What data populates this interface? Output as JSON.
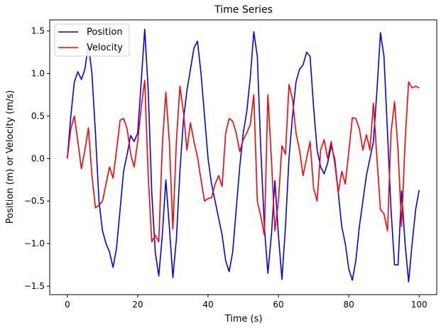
{
  "chart_data": {
    "type": "line",
    "title": "Time Series",
    "xlabel": "Time (s)",
    "ylabel": "Position (m) or Velocity (m/s)",
    "xlim": [
      -5,
      105
    ],
    "ylim": [
      -1.6,
      1.63
    ],
    "xticks": [
      0,
      20,
      40,
      60,
      80,
      100
    ],
    "yticks": [
      -1.5,
      -1.0,
      -0.5,
      0.0,
      0.5,
      1.0,
      1.5
    ],
    "ytick_labels": [
      "−1.5",
      "−1.0",
      "−0.5",
      "0.0",
      "0.5",
      "1.0",
      "1.5"
    ],
    "legend": "upper-left",
    "grid": false,
    "series": [
      {
        "name": "Position",
        "color": "#0000ff",
        "x": [
          0,
          1,
          2,
          3,
          4,
          5,
          6,
          7,
          8,
          9,
          10,
          11,
          12,
          13,
          14,
          15,
          16,
          17,
          18,
          19,
          20,
          21,
          22,
          23,
          24,
          25,
          26,
          27,
          28,
          29,
          30,
          31,
          32,
          33,
          34,
          35,
          36,
          37,
          38,
          39,
          40,
          41,
          42,
          43,
          44,
          45,
          46,
          47,
          48,
          49,
          50,
          51,
          52,
          53,
          54,
          55,
          56,
          57,
          58,
          59,
          60,
          61,
          62,
          63,
          64,
          65,
          66,
          67,
          68,
          69,
          70,
          71,
          72,
          73,
          74,
          75,
          76,
          77,
          78,
          79,
          80,
          81,
          82,
          83,
          84,
          85,
          86,
          87,
          88,
          89,
          90,
          91,
          92,
          93,
          94,
          95,
          96,
          97,
          98,
          99,
          100
        ],
        "y": [
          0.0,
          0.5,
          0.9,
          1.02,
          0.93,
          1.05,
          1.35,
          1.0,
          0.3,
          -0.5,
          -0.85,
          -1.0,
          -1.1,
          -1.28,
          -1.05,
          -0.6,
          -0.15,
          0.05,
          0.27,
          0.2,
          0.3,
          0.9,
          1.52,
          0.8,
          -0.4,
          -1.1,
          -1.38,
          -0.9,
          -0.25,
          -0.8,
          -1.4,
          -0.95,
          -0.15,
          0.45,
          0.8,
          1.05,
          1.3,
          1.38,
          1.0,
          0.5,
          0.0,
          -0.3,
          -0.5,
          -0.7,
          -0.9,
          -1.2,
          -1.33,
          -1.1,
          -0.6,
          -0.1,
          0.3,
          0.55,
          0.95,
          1.49,
          1.2,
          0.1,
          -0.8,
          -1.35,
          -0.9,
          -0.26,
          -0.9,
          -1.42,
          -0.8,
          0.0,
          0.5,
          0.9,
          1.05,
          1.1,
          1.25,
          1.2,
          0.6,
          0.1,
          -0.1,
          -0.18,
          -0.05,
          0.15,
          0.0,
          -0.4,
          -0.8,
          -1.0,
          -1.3,
          -1.43,
          -1.2,
          -0.8,
          -0.5,
          -0.2,
          0.0,
          0.2,
          0.8,
          1.48,
          1.2,
          0.3,
          -0.6,
          -1.25,
          -1.25,
          -0.38,
          -1.0,
          -1.45,
          -1.0,
          -0.6,
          -0.37
        ]
      },
      {
        "name": "Velocity",
        "color": "#ff0000",
        "x": [
          0,
          1,
          2,
          3,
          4,
          5,
          6,
          7,
          8,
          9,
          10,
          11,
          12,
          13,
          14,
          15,
          16,
          17,
          18,
          19,
          20,
          21,
          22,
          23,
          24,
          25,
          26,
          27,
          28,
          29,
          30,
          31,
          32,
          33,
          34,
          35,
          36,
          37,
          38,
          39,
          40,
          41,
          42,
          43,
          44,
          45,
          46,
          47,
          48,
          49,
          50,
          51,
          52,
          53,
          54,
          55,
          56,
          57,
          58,
          59,
          60,
          61,
          62,
          63,
          64,
          65,
          66,
          67,
          68,
          69,
          70,
          71,
          72,
          73,
          74,
          75,
          76,
          77,
          78,
          79,
          80,
          81,
          82,
          83,
          84,
          85,
          86,
          87,
          88,
          89,
          90,
          91,
          92,
          93,
          94,
          95,
          96,
          97,
          98,
          99,
          100
        ],
        "y": [
          0.0,
          0.35,
          0.5,
          0.2,
          -0.12,
          0.1,
          0.36,
          -0.2,
          -0.58,
          -0.55,
          -0.5,
          -0.3,
          -0.1,
          -0.23,
          0.1,
          0.45,
          0.47,
          0.35,
          0.05,
          -0.1,
          0.2,
          0.6,
          0.92,
          -0.2,
          -0.98,
          -0.9,
          -0.98,
          0.15,
          0.78,
          0.2,
          -0.83,
          0.2,
          0.85,
          0.55,
          0.1,
          0.42,
          0.2,
          0.02,
          -0.25,
          -0.5,
          -0.47,
          -0.46,
          -0.3,
          -0.2,
          -0.33,
          0.3,
          0.47,
          0.44,
          0.3,
          0.08,
          0.22,
          0.3,
          0.4,
          0.75,
          -0.5,
          -0.68,
          -0.9,
          0.75,
          0.0,
          -0.85,
          -0.5,
          0.15,
          0.05,
          0.87,
          0.7,
          0.3,
          0.1,
          -0.2,
          0.0,
          0.2,
          -0.35,
          -0.5,
          0.1,
          0.22,
          0.0,
          0.2,
          -0.05,
          -0.4,
          -0.15,
          -0.3,
          0.08,
          0.48,
          0.47,
          0.35,
          0.1,
          0.28,
          0.1,
          0.65,
          0.0,
          -0.6,
          -0.65,
          -0.85,
          0.3,
          0.67,
          0.1,
          -0.8,
          0.2,
          0.9,
          0.83,
          0.85,
          0.83
        ]
      }
    ]
  }
}
